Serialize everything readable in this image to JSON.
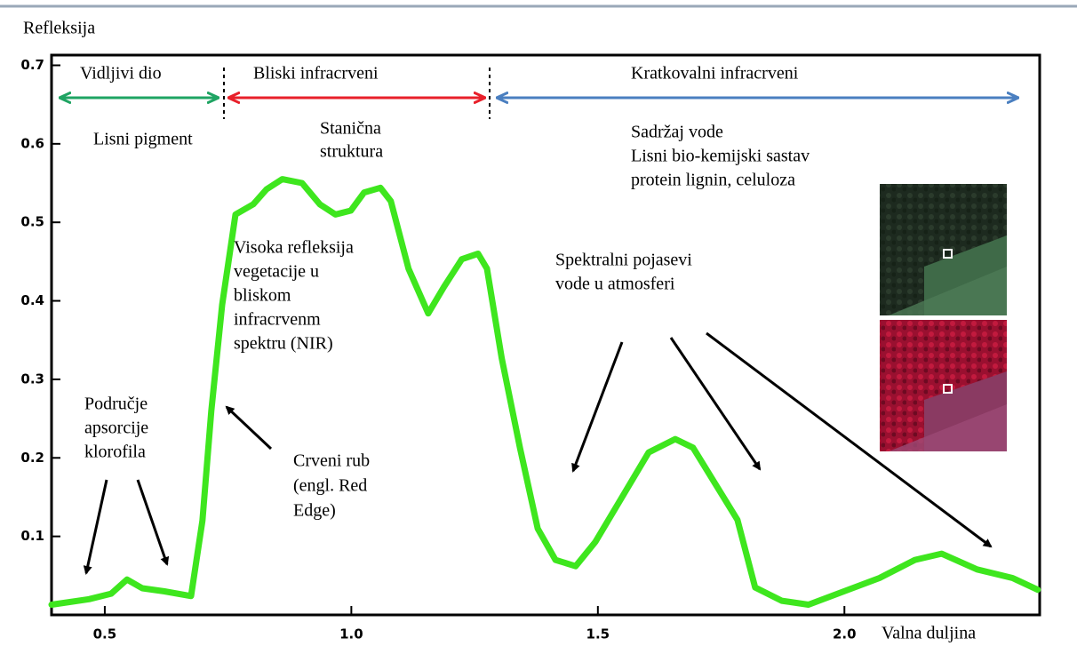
{
  "chart_data": {
    "type": "line",
    "y_label": "Refleksija",
    "x_label": "Valna duljina",
    "x": [
      0.392,
      0.468,
      0.513,
      0.545,
      0.576,
      0.621,
      0.675,
      0.698,
      0.716,
      0.738,
      0.765,
      0.801,
      0.828,
      0.86,
      0.9,
      0.936,
      0.968,
      0.999,
      1.026,
      1.059,
      1.08,
      1.116,
      1.156,
      1.188,
      1.224,
      1.257,
      1.275,
      1.305,
      1.342,
      1.378,
      1.414,
      1.455,
      1.495,
      1.549,
      1.603,
      1.657,
      1.693,
      1.738,
      1.783,
      1.819,
      1.873,
      1.927,
      1.999,
      2.071,
      2.143,
      2.197,
      2.269,
      2.341,
      2.392
    ],
    "values": [
      0.013,
      0.02,
      0.027,
      0.045,
      0.034,
      0.03,
      0.024,
      0.12,
      0.26,
      0.395,
      0.51,
      0.523,
      0.542,
      0.555,
      0.55,
      0.523,
      0.51,
      0.515,
      0.538,
      0.544,
      0.527,
      0.441,
      0.384,
      0.418,
      0.453,
      0.46,
      0.441,
      0.327,
      0.213,
      0.11,
      0.07,
      0.062,
      0.093,
      0.15,
      0.207,
      0.224,
      0.213,
      0.167,
      0.121,
      0.035,
      0.018,
      0.013,
      0.03,
      0.047,
      0.07,
      0.078,
      0.058,
      0.047,
      0.032
    ],
    "color": "#3ee61e",
    "xlim": [
      0.392,
      2.396
    ],
    "ylim": [
      0,
      0.713
    ],
    "xticks": [
      0.5,
      {
        "value": 1,
        "label": "1.0"
      },
      1.5,
      {
        "value": 2,
        "label": "2.0"
      }
    ],
    "yticks": [
      0.1,
      0.2,
      0.3,
      0.4,
      0.5,
      0.6,
      0.7
    ],
    "regions": [
      {
        "name": "Vidljivi dio",
        "color": "#1fa463"
      },
      {
        "name": "Bliski infracrveni",
        "color": "#e8202a"
      },
      {
        "name": "Kratkovalni infracrveni",
        "color": "#4a7fc0"
      }
    ],
    "annotations": [
      [
        "Lisni pigment"
      ],
      [
        "Stanična",
        "struktura"
      ],
      [
        "Sadržaj vode",
        "Lisni bio-kemijski sastav",
        "protein lignin, celuloza"
      ],
      [
        "Visoka refleksija",
        "vegetacije u",
        "bliskom",
        "infracrvenm",
        "spektru (NIR)"
      ],
      [
        "Spektralni pojasevi",
        "vode u atmosferi"
      ],
      [
        "Područje",
        "apsorcije",
        "klorofila"
      ],
      [
        "Crveni rub",
        "(engl. Red",
        "Edge)"
      ]
    ]
  }
}
